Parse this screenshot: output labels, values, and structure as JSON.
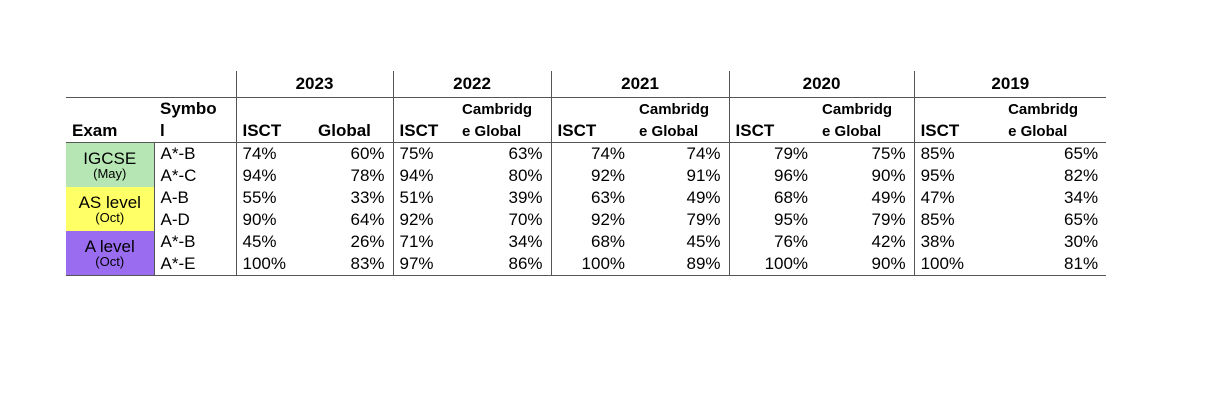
{
  "years": [
    "2023",
    "2022",
    "2021",
    "2020",
    "2019"
  ],
  "headers": {
    "exam": "Exam",
    "symbol_line1": "Symbo",
    "symbol_line2": "l",
    "isct": "ISCT",
    "global_2023": "Global",
    "cambridge_line1": "Cambridg",
    "cambridge_line2": "e Global"
  },
  "exams": [
    {
      "name": "IGCSE",
      "session": "(May)",
      "color": "#b6e6b3"
    },
    {
      "name": "AS level",
      "session": "(Oct)",
      "color": "#ffff66"
    },
    {
      "name": "A level",
      "session": "(Oct)",
      "color": "#9a6cf0"
    }
  ],
  "rows": [
    {
      "symbol": "A*-B",
      "values": [
        [
          "74%",
          "60%"
        ],
        [
          "75%",
          "63%"
        ],
        [
          "74%",
          "74%"
        ],
        [
          "79%",
          "75%"
        ],
        [
          "85%",
          "65%"
        ]
      ]
    },
    {
      "symbol": "A*-C",
      "values": [
        [
          "94%",
          "78%"
        ],
        [
          "94%",
          "80%"
        ],
        [
          "92%",
          "91%"
        ],
        [
          "96%",
          "90%"
        ],
        [
          "95%",
          "82%"
        ]
      ]
    },
    {
      "symbol": "A-B",
      "values": [
        [
          "55%",
          "33%"
        ],
        [
          "51%",
          "39%"
        ],
        [
          "63%",
          "49%"
        ],
        [
          "68%",
          "49%"
        ],
        [
          "47%",
          "34%"
        ]
      ]
    },
    {
      "symbol": "A-D",
      "values": [
        [
          "90%",
          "64%"
        ],
        [
          "92%",
          "70%"
        ],
        [
          "92%",
          "79%"
        ],
        [
          "95%",
          "79%"
        ],
        [
          "85%",
          "65%"
        ]
      ]
    },
    {
      "symbol": "A*-B",
      "values": [
        [
          "45%",
          "26%"
        ],
        [
          "71%",
          "34%"
        ],
        [
          "68%",
          "45%"
        ],
        [
          "76%",
          "42%"
        ],
        [
          "38%",
          "30%"
        ]
      ]
    },
    {
      "symbol": "A*-E",
      "values": [
        [
          "100%",
          "83%"
        ],
        [
          "97%",
          "86%"
        ],
        [
          "100%",
          "89%"
        ],
        [
          "100%",
          "90%"
        ],
        [
          "100%",
          "81%"
        ]
      ]
    }
  ]
}
